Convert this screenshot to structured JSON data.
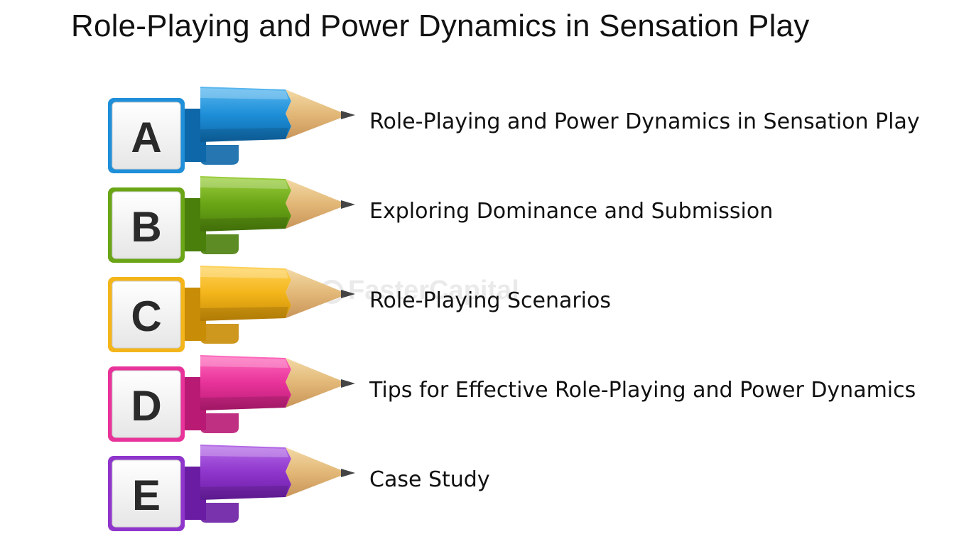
{
  "title": "Role-Playing and Power Dynamics in Sensation Play",
  "watermark": "FasterCapital",
  "items": [
    {
      "letter": "A",
      "label": "Role-Playing and Power Dynamics in Sensation Play",
      "color": "#1e8fd8",
      "light": "#5ab8f0",
      "dark": "#0d67a8"
    },
    {
      "letter": "B",
      "label": "Exploring Dominance and Submission",
      "color": "#6aa516",
      "light": "#9ccf3e",
      "dark": "#4a7f0b"
    },
    {
      "letter": "C",
      "label": "Role-Playing Scenarios",
      "color": "#f3b51a",
      "light": "#ffd35a",
      "dark": "#c98c06"
    },
    {
      "letter": "D",
      "label": "Tips for Effective Role-Playing and Power Dynamics",
      "color": "#e8339a",
      "light": "#ff6cbd",
      "dark": "#b81a74"
    },
    {
      "letter": "E",
      "label": "Case Study",
      "color": "#8f35cc",
      "light": "#b66ee8",
      "dark": "#6a1da3"
    }
  ]
}
